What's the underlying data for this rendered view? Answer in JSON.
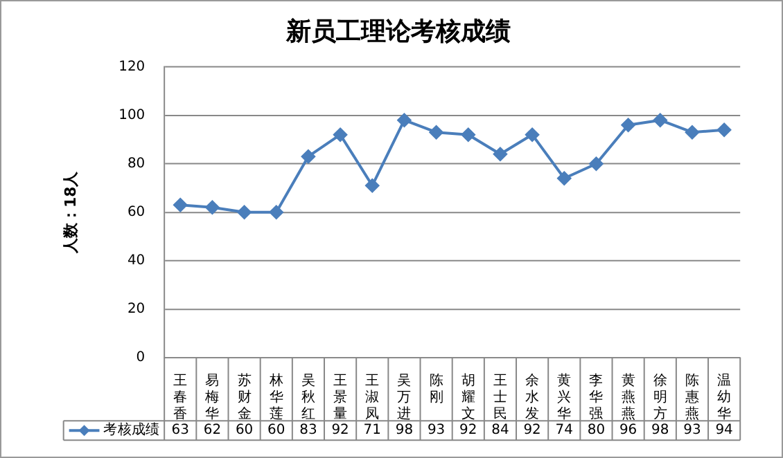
{
  "chart_data": {
    "type": "line",
    "title": "新员工理论考核成绩",
    "ylabel": "人数：18人",
    "categories": [
      "王春香",
      "易梅华",
      "苏财金",
      "林华莲",
      "吴秋红",
      "王景量",
      "王淑凤",
      "吴万进",
      "陈刚",
      "胡耀文",
      "王士民",
      "余水发",
      "黄兴华",
      "李华强",
      "黄燕燕",
      "徐明方",
      "陈惠燕",
      "温幼华"
    ],
    "series": [
      {
        "name": "考核成绩",
        "color": "#4a7ebb",
        "values": [
          63,
          62,
          60,
          60,
          83,
          92,
          71,
          98,
          93,
          92,
          84,
          92,
          74,
          80,
          96,
          98,
          93,
          94
        ]
      }
    ],
    "ylim": [
      0,
      120
    ],
    "yticks": [
      0,
      20,
      40,
      60,
      80,
      100,
      120
    ],
    "grid": "y",
    "legend": "bottom",
    "marker": "diamond",
    "line_style": "solid",
    "data_labels": true
  }
}
